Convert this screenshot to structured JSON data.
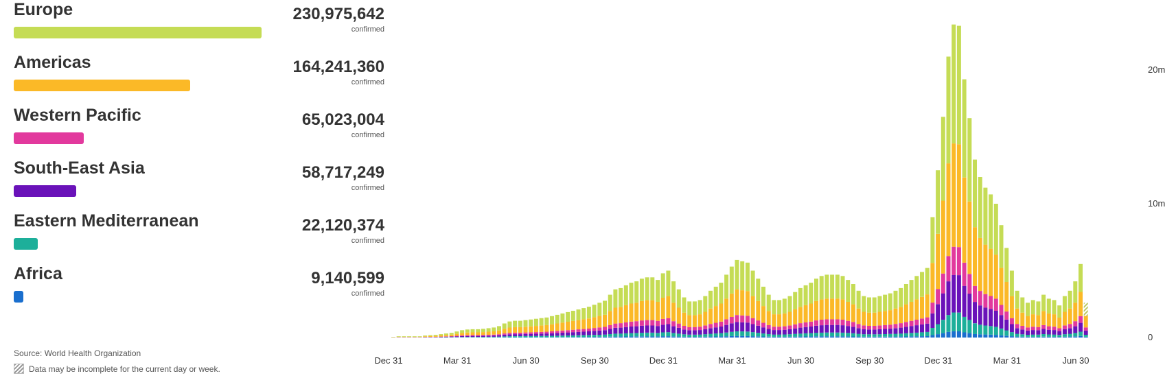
{
  "regions": [
    {
      "name": "Europe",
      "value": "230,975,642",
      "unit": "confirmed",
      "color": "#c5dc55",
      "share": 1.0
    },
    {
      "name": "Americas",
      "value": "164,241,360",
      "unit": "confirmed",
      "color": "#fbb927",
      "share": 0.711
    },
    {
      "name": "Western Pacific",
      "value": "65,023,004",
      "unit": "confirmed",
      "color": "#e2399d",
      "share": 0.282
    },
    {
      "name": "South-East Asia",
      "value": "58,717,249",
      "unit": "confirmed",
      "color": "#6a12b9",
      "share": 0.254
    },
    {
      "name": "Eastern Mediterranean",
      "value": "22,120,374",
      "unit": "confirmed",
      "color": "#1daf9a",
      "share": 0.096
    },
    {
      "name": "Africa",
      "value": "9,140,599",
      "unit": "confirmed",
      "color": "#1a6fce",
      "share": 0.04
    }
  ],
  "source": "Source:  World Health Organization",
  "note": "Data may be incomplete for the current day or week.",
  "chart_data": {
    "type": "bar",
    "stacked": true,
    "x_ticks": [
      "Dec 31",
      "Mar 31",
      "Jun 30",
      "Sep 30",
      "Dec 31",
      "Mar 31",
      "Jun 30",
      "Sep 30",
      "Dec 31",
      "Mar 31",
      "Jun 30"
    ],
    "y_ticks": [
      "0",
      "10m",
      "20m"
    ],
    "ylim": [
      0,
      24000000
    ],
    "y_tick_values": [
      0,
      10000000,
      20000000
    ],
    "grid": false,
    "x_tick_positions": [
      0,
      13,
      26,
      39,
      52,
      65,
      78,
      91,
      104,
      117,
      130
    ],
    "last_week_incomplete": true,
    "series_order": [
      "Africa",
      "Eastern Mediterranean",
      "South-East Asia",
      "Western Pacific",
      "Americas",
      "Europe"
    ],
    "weekly_total": [
      0.05,
      0.1,
      0.1,
      0.1,
      0.1,
      0.1,
      0.15,
      0.18,
      0.2,
      0.25,
      0.3,
      0.35,
      0.45,
      0.55,
      0.6,
      0.62,
      0.62,
      0.65,
      0.7,
      0.75,
      0.85,
      1.05,
      1.2,
      1.25,
      1.25,
      1.3,
      1.35,
      1.4,
      1.45,
      1.5,
      1.6,
      1.7,
      1.8,
      1.9,
      2.0,
      2.1,
      2.2,
      2.3,
      2.45,
      2.6,
      2.75,
      3.2,
      3.6,
      3.7,
      3.9,
      4.1,
      4.2,
      4.4,
      4.5,
      4.5,
      4.3,
      4.8,
      5.0,
      4.2,
      3.6,
      3.0,
      2.7,
      2.7,
      2.8,
      3.1,
      3.5,
      3.8,
      4.1,
      4.7,
      5.3,
      5.8,
      5.7,
      5.6,
      5.0,
      4.4,
      3.8,
      3.2,
      2.8,
      2.8,
      2.9,
      3.1,
      3.4,
      3.7,
      3.9,
      4.1,
      4.4,
      4.6,
      4.7,
      4.7,
      4.7,
      4.6,
      4.3,
      4.0,
      3.5,
      3.1,
      3.0,
      3.0,
      3.1,
      3.2,
      3.3,
      3.5,
      3.7,
      4.0,
      4.3,
      4.6,
      4.9,
      5.2,
      9.0,
      12.5,
      16.5,
      21.0,
      23.4,
      23.3,
      19.3,
      16.4,
      13.3,
      12.0,
      11.2,
      10.7,
      10.0,
      8.4,
      6.7,
      5.0,
      3.5,
      3.0,
      2.6,
      2.8,
      2.7,
      3.2,
      2.9,
      2.8,
      2.4,
      3.1,
      3.5,
      4.2,
      5.5,
      2.6
    ],
    "shares": {
      "Africa": 0.02,
      "Eastern Mediterranean": 0.06,
      "South-East Asia": 0.12,
      "Western Pacific": 0.09,
      "Americas": 0.33,
      "Europe": 0.38
    },
    "unit": "millions of cases per week"
  }
}
